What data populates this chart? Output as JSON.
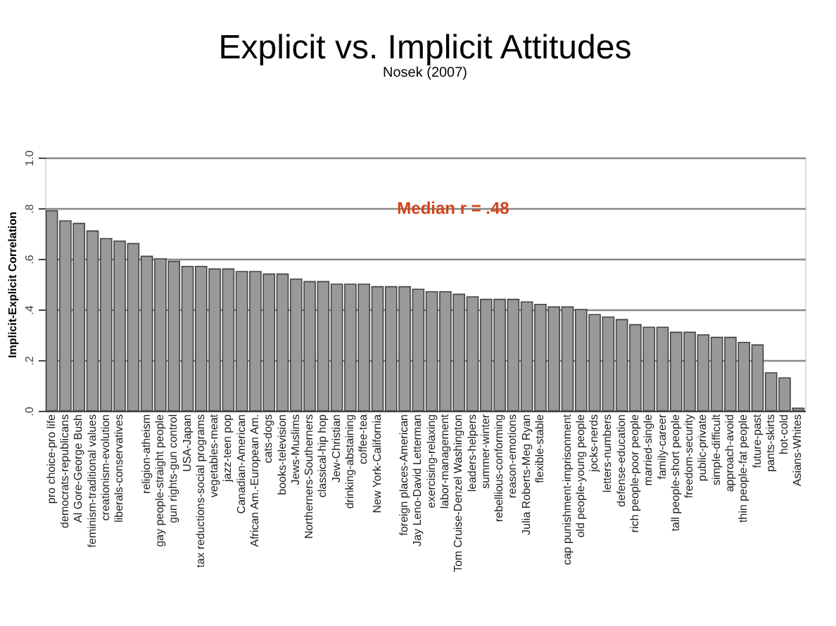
{
  "chart_data": {
    "type": "bar",
    "title": "Explicit vs. Implicit Attitudes",
    "subtitle": "Nosek (2007)",
    "ylabel": "Implicit-Explicit Correlation",
    "categories": [
      "pro choice-pro life",
      "democrats-republicans",
      "Al Gore-George Bush",
      "feminism-traditional values",
      "creationism-evolution",
      "liberals-conservatives",
      null,
      "religion-atheism",
      "gay people-straight people",
      "gun rights-gun control",
      "USA-Japan",
      "tax reductions-social programs",
      "vegetables-meat",
      "jazz-teen pop",
      "Canadian-American",
      "African Am.-European Am.",
      "cats-dogs",
      "books-television",
      "Jews-Muslims",
      "Northerners-Southerners",
      "classical-hip hop",
      "Jew-Christian",
      "drinking-abstaining",
      "coffee-tea",
      "New York-California",
      null,
      "foreign places-American",
      "Jay Leno-David Letterman",
      "exercising-relaxing",
      "labor-management",
      "Tom Cruise-Denzel Washington",
      "leaders-helpers",
      "summer-winter",
      "rebellious-conforming",
      "reason-emotions",
      "Julia Roberts-Meg Ryan",
      "flexible-stable",
      null,
      "cap punishment-imprisonment",
      "old people-young people",
      "jocks-nerds",
      "letters-numbers",
      "defense-education",
      "rich people-poor people",
      "married-single",
      "family-career",
      "tall people-short people",
      "freedom-security",
      "public-private",
      "simple-difficult",
      "approach-avoid",
      "thin people-fat people",
      "future-past",
      "pants-skirts",
      "hot-cold",
      "Asians-Whites"
    ],
    "values": [
      0.79,
      0.75,
      0.74,
      0.71,
      0.68,
      0.67,
      0.66,
      0.61,
      0.6,
      0.59,
      0.57,
      0.57,
      0.56,
      0.56,
      0.55,
      0.55,
      0.54,
      0.54,
      0.52,
      0.51,
      0.51,
      0.5,
      0.5,
      0.5,
      0.49,
      0.49,
      0.49,
      0.48,
      0.47,
      0.47,
      0.46,
      0.45,
      0.44,
      0.44,
      0.44,
      0.43,
      0.42,
      0.41,
      0.41,
      0.4,
      0.38,
      0.37,
      0.36,
      0.34,
      0.33,
      0.33,
      0.31,
      0.31,
      0.3,
      0.29,
      0.29,
      0.27,
      0.26,
      0.15,
      0.13,
      0.01
    ],
    "color": "#999999",
    "ylim": [
      0,
      1
    ],
    "yticks": [
      {
        "value": 0,
        "label": ".0"
      },
      {
        "value": 0.2,
        "label": ".2"
      },
      {
        "value": 0.4,
        "label": ".4"
      },
      {
        "value": 0.6,
        "label": ".6"
      },
      {
        "value": 0.8,
        "label": ".8"
      },
      {
        "value": 1,
        "label": "1.0"
      }
    ],
    "grid": "y",
    "annotations": [
      "Median r = .48"
    ]
  }
}
